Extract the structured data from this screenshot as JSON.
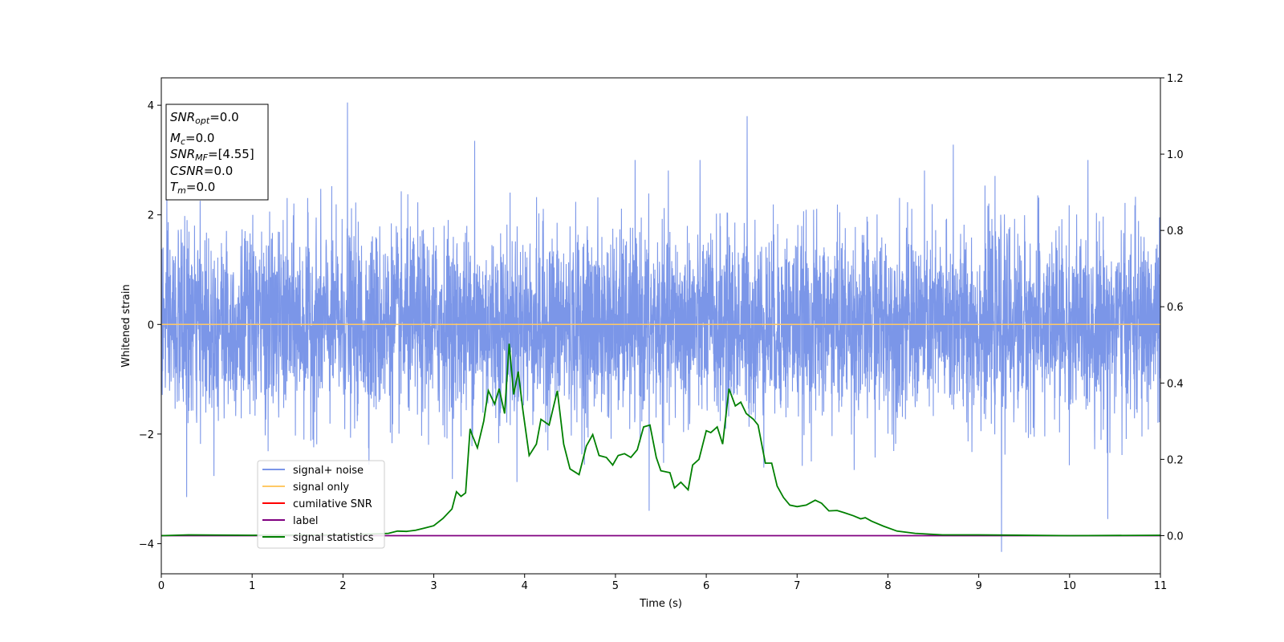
{
  "chart_data": {
    "type": "line",
    "xlabel": "Time (s)",
    "ylabel": "Whitened strain",
    "xlim": [
      0,
      11
    ],
    "ylim": [
      -4.55,
      4.5
    ],
    "y2lim": [
      -0.1,
      1.2
    ],
    "x_ticks": [
      "0",
      "1",
      "2",
      "3",
      "4",
      "5",
      "6",
      "7",
      "8",
      "9",
      "10",
      "11"
    ],
    "y_ticks": [
      "4",
      "2",
      "0",
      "−2",
      "−4"
    ],
    "y2_ticks": [
      "1.2",
      "1.0",
      "0.8",
      "0.6",
      "0.4",
      "0.2",
      "0.0"
    ],
    "legend_position": "lower-left",
    "info_box": {
      "lines": [
        {
          "base": "SNR",
          "sub": "opt",
          "value": "=0.0"
        },
        {
          "base": "M",
          "sub": "c",
          "value": "=0.0"
        },
        {
          "base": "SNR",
          "sub": "MF",
          "value": "=[4.55]"
        },
        {
          "base": "CSNR",
          "sub": "",
          "value": "=0.0"
        },
        {
          "base": "T",
          "sub": "m",
          "value": "=0.0"
        }
      ]
    },
    "series": [
      {
        "name": "signal+ noise",
        "color": "#7b96e8",
        "axis": "left",
        "description": "noise",
        "amplitude_std": 0.85,
        "peaks": [
          [
            2.05,
            4.05
          ],
          [
            9.25,
            -4.15
          ],
          [
            0.28,
            -3.15
          ],
          [
            3.45,
            3.35
          ],
          [
            8.72,
            3.28
          ],
          [
            6.45,
            3.8
          ],
          [
            5.37,
            -3.4
          ],
          [
            10.42,
            -3.55
          ],
          [
            11.0,
            3.0
          ]
        ]
      },
      {
        "name": "signal only",
        "color": "#ffc966",
        "axis": "left",
        "x": [
          0,
          11
        ],
        "y": [
          0,
          0
        ]
      },
      {
        "name": "cumilative SNR",
        "color": "#ff0000",
        "axis": "right",
        "x": [],
        "y": []
      },
      {
        "name": "label",
        "color": "#800080",
        "axis": "right",
        "x": [
          0,
          11
        ],
        "y": [
          0,
          0
        ]
      },
      {
        "name": "signal statistics",
        "color": "#008000",
        "axis": "right",
        "x": [
          0,
          0.3,
          1.0,
          2.0,
          2.4,
          2.5,
          2.6,
          2.7,
          2.8,
          2.9,
          3.0,
          3.1,
          3.2,
          3.25,
          3.3,
          3.35,
          3.4,
          3.42,
          3.48,
          3.55,
          3.6,
          3.67,
          3.72,
          3.78,
          3.83,
          3.88,
          3.93,
          3.98,
          4.05,
          4.13,
          4.18,
          4.27,
          4.36,
          4.43,
          4.5,
          4.6,
          4.68,
          4.75,
          4.82,
          4.9,
          4.97,
          5.03,
          5.1,
          5.17,
          5.24,
          5.31,
          5.38,
          5.45,
          5.5,
          5.6,
          5.65,
          5.72,
          5.8,
          5.85,
          5.92,
          6.0,
          6.05,
          6.12,
          6.18,
          6.25,
          6.32,
          6.38,
          6.44,
          6.52,
          6.57,
          6.65,
          6.72,
          6.78,
          6.85,
          6.92,
          7.0,
          7.1,
          7.2,
          7.27,
          7.35,
          7.44,
          7.52,
          7.62,
          7.7,
          7.75,
          7.82,
          7.95,
          8.1,
          8.3,
          8.6,
          9.0,
          10.0,
          11.0
        ],
        "y": [
          0.0,
          0.002,
          0.001,
          0.002,
          0.005,
          0.006,
          0.012,
          0.011,
          0.014,
          0.02,
          0.026,
          0.045,
          0.07,
          0.115,
          0.103,
          0.112,
          0.28,
          0.265,
          0.23,
          0.3,
          0.38,
          0.345,
          0.385,
          0.32,
          0.503,
          0.37,
          0.43,
          0.33,
          0.21,
          0.24,
          0.305,
          0.29,
          0.38,
          0.24,
          0.175,
          0.16,
          0.235,
          0.265,
          0.21,
          0.205,
          0.185,
          0.21,
          0.215,
          0.205,
          0.225,
          0.285,
          0.29,
          0.205,
          0.17,
          0.165,
          0.125,
          0.14,
          0.12,
          0.185,
          0.2,
          0.275,
          0.27,
          0.285,
          0.24,
          0.385,
          0.34,
          0.35,
          0.32,
          0.305,
          0.29,
          0.19,
          0.19,
          0.13,
          0.1,
          0.08,
          0.076,
          0.08,
          0.093,
          0.085,
          0.065,
          0.066,
          0.06,
          0.052,
          0.044,
          0.047,
          0.038,
          0.025,
          0.012,
          0.006,
          0.002,
          0.002,
          0.0,
          0.001
        ]
      }
    ]
  }
}
